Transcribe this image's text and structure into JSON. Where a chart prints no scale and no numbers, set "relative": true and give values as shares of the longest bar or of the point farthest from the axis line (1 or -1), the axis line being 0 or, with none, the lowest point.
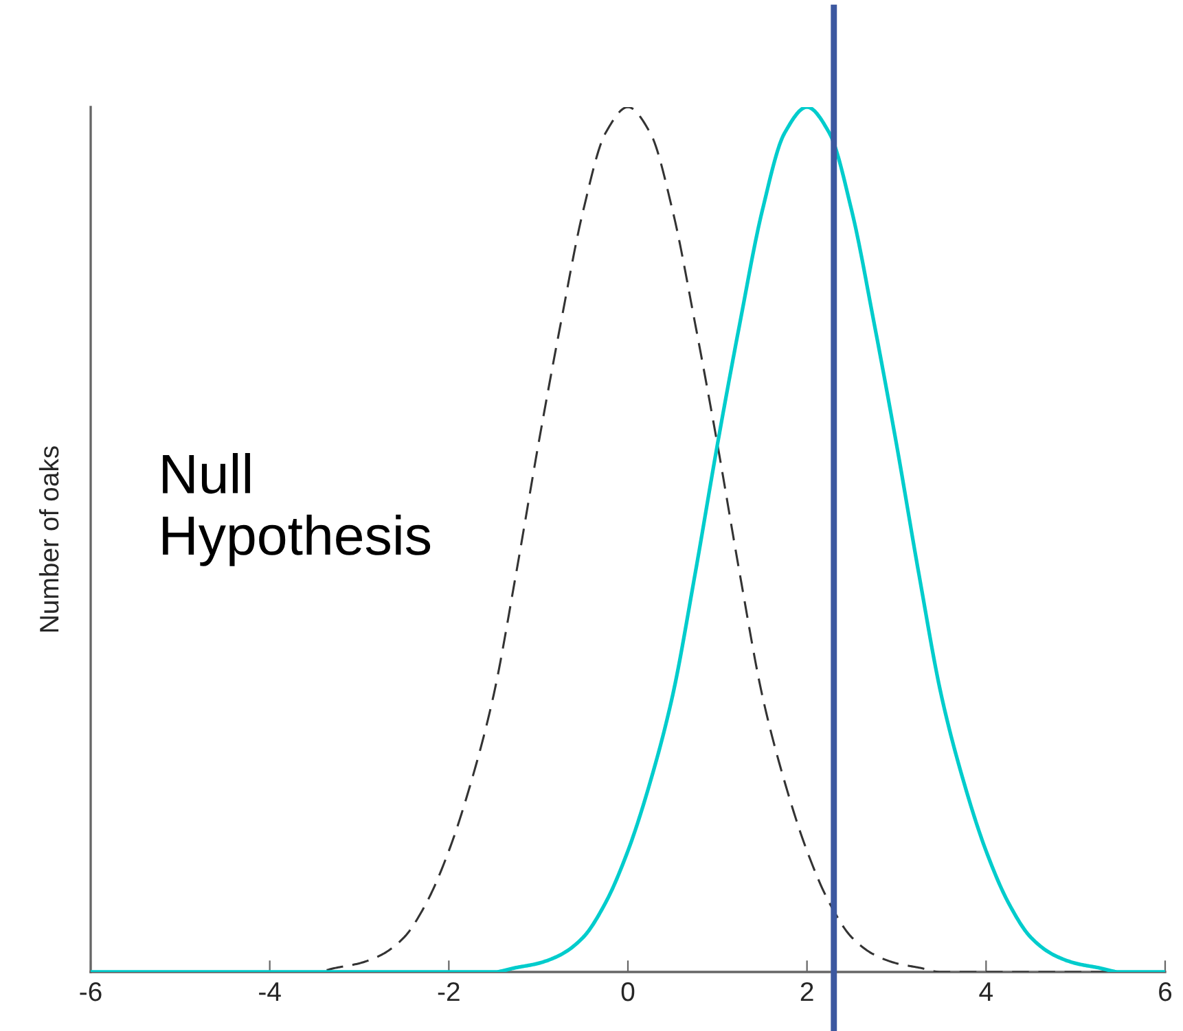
{
  "chart_data": {
    "type": "line",
    "ylabel": "Number of oaks",
    "annotations": [
      "Null\nHypothesis"
    ],
    "relative": true,
    "xlim": [
      -6,
      6
    ],
    "xticks": [
      -6,
      -4,
      -2,
      0,
      2,
      4,
      6
    ],
    "series": [
      {
        "color": "#333333",
        "line_style": "dashed",
        "x": [
          -6,
          -5,
          -4,
          -3.5,
          -3.25,
          -3,
          -2.75,
          -2.5,
          -2.25,
          -2,
          -1.75,
          -1.5,
          -1.25,
          -1,
          -0.75,
          -0.5,
          -0.25,
          0,
          0.25,
          0.5,
          0.75,
          1,
          1.25,
          1.5,
          1.75,
          2,
          2.25,
          2.5,
          2.75,
          3,
          3.25,
          3.5,
          4,
          5,
          6
        ],
        "values": [
          0,
          0,
          0,
          0,
          0.005,
          0.01,
          0.02,
          0.04,
          0.08,
          0.14,
          0.22,
          0.32,
          0.46,
          0.61,
          0.75,
          0.88,
          0.97,
          1,
          0.97,
          0.88,
          0.75,
          0.61,
          0.46,
          0.32,
          0.22,
          0.14,
          0.08,
          0.04,
          0.02,
          0.01,
          0.005,
          0,
          0,
          0,
          0
        ]
      },
      {
        "color": "#00cccc",
        "line_style": "solid",
        "x": [
          -6,
          -4,
          -2,
          -1.5,
          -1.25,
          -1,
          -0.75,
          -0.5,
          -0.25,
          0,
          0.25,
          0.5,
          0.75,
          1,
          1.25,
          1.5,
          1.75,
          2,
          2.25,
          2.5,
          2.75,
          3,
          3.25,
          3.5,
          3.75,
          4,
          4.25,
          4.5,
          4.75,
          5,
          5.25,
          5.5,
          6
        ],
        "values": [
          0,
          0,
          0,
          0,
          0.005,
          0.01,
          0.02,
          0.04,
          0.08,
          0.14,
          0.22,
          0.32,
          0.46,
          0.61,
          0.75,
          0.88,
          0.97,
          1,
          0.97,
          0.88,
          0.75,
          0.61,
          0.46,
          0.32,
          0.22,
          0.14,
          0.08,
          0.04,
          0.02,
          0.01,
          0.005,
          0,
          0
        ]
      }
    ],
    "ref_lines": [
      {
        "axis": "x",
        "value": 2.3,
        "color": "#3c58a0",
        "line_style": "solid"
      }
    ]
  }
}
